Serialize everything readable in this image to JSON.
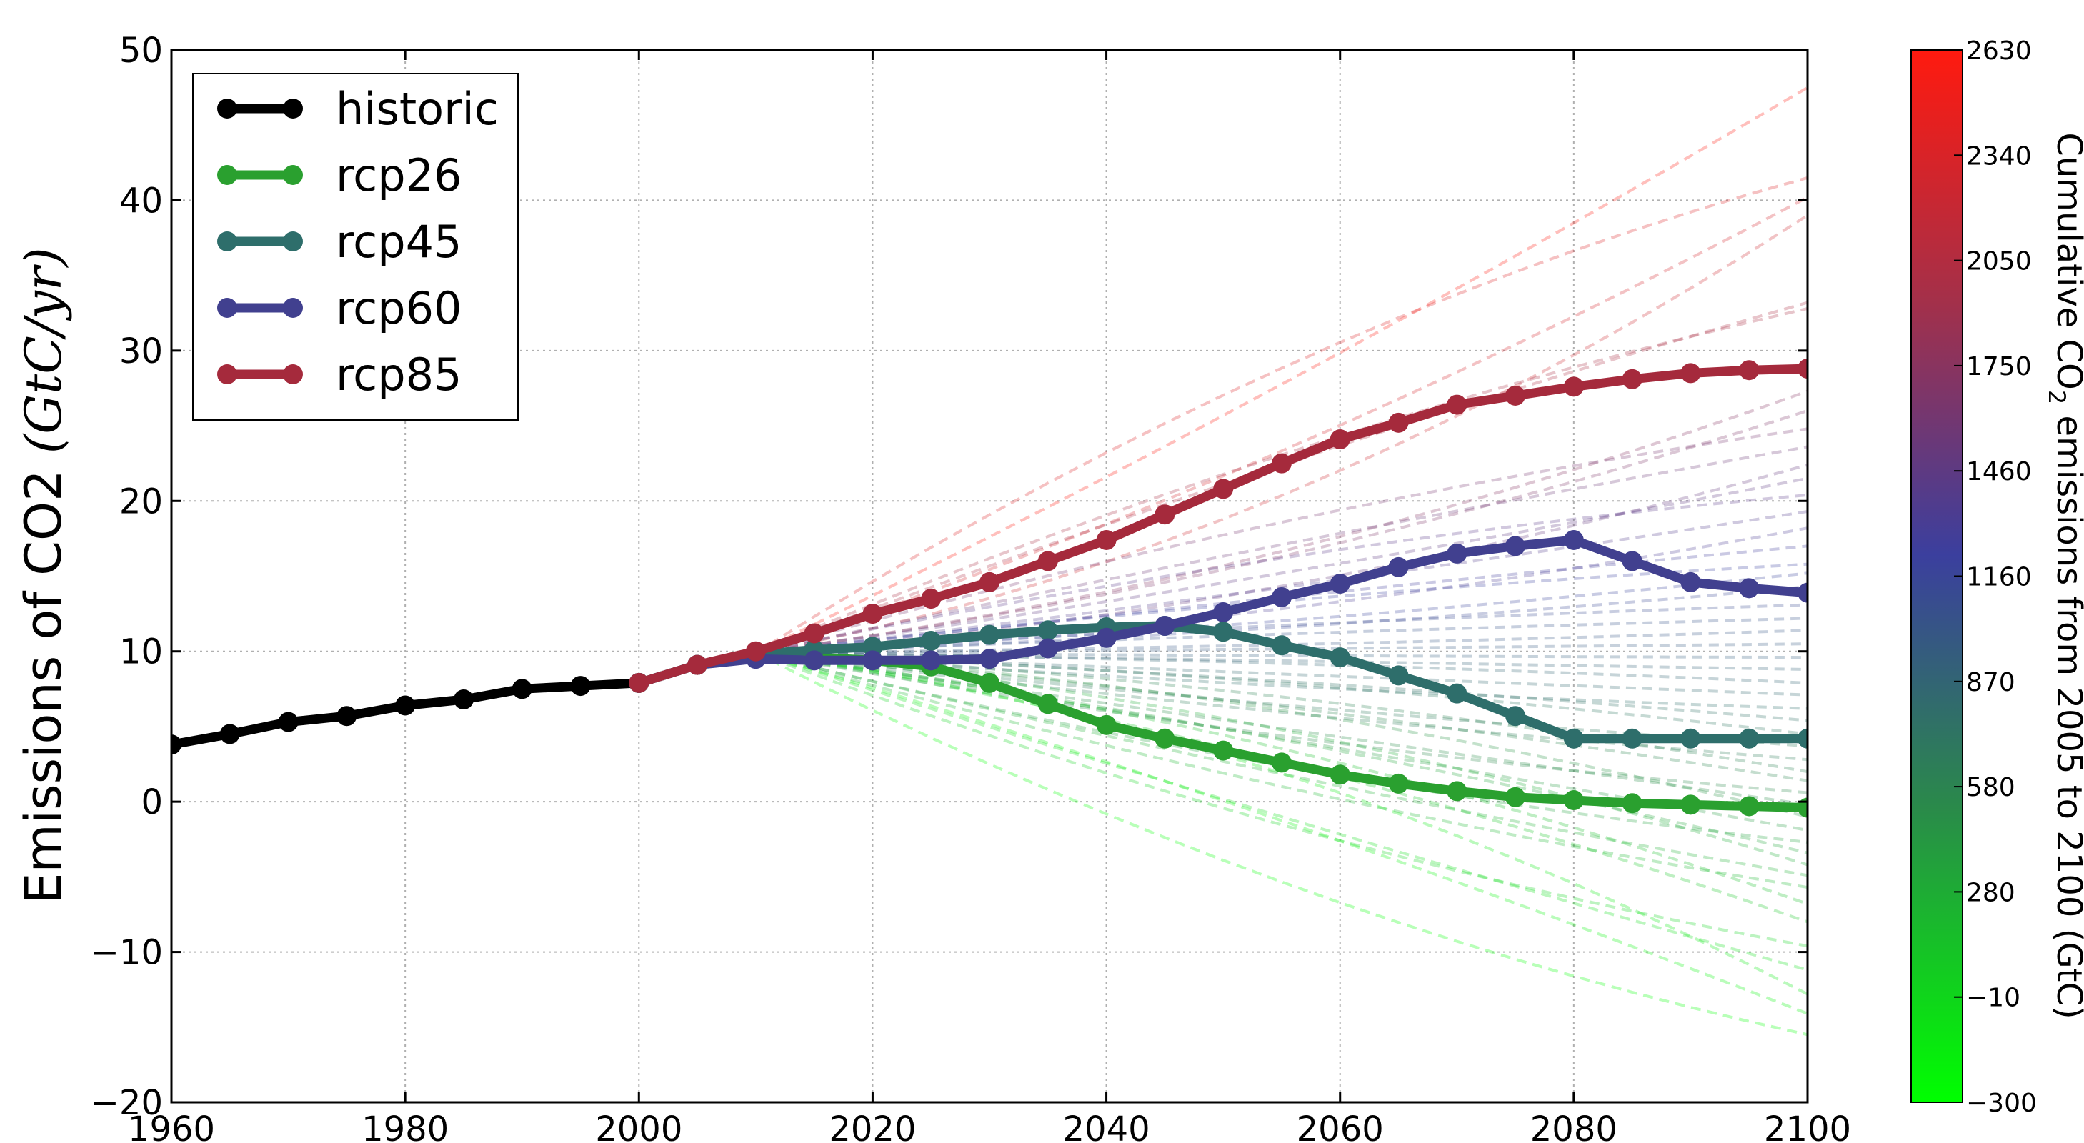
{
  "chart_data": {
    "type": "line",
    "title": "",
    "ylabel": "Emissions of CO2 ",
    "ylabel_unit": "(GtC/yr)",
    "xlabel": "",
    "xlim": [
      1960,
      2100
    ],
    "ylim": [
      -20,
      50
    ],
    "x_ticks": [
      "1960",
      "1980",
      "2000",
      "2020",
      "2040",
      "2060",
      "2080",
      "2100"
    ],
    "y_ticks": [
      "50",
      "40",
      "30",
      "20",
      "10",
      "0",
      "−10",
      "−20"
    ],
    "grid": true,
    "legend_placement": "top-left",
    "series": [
      {
        "name": "historic",
        "color": "#000000",
        "x": [
          1960,
          1965,
          1970,
          1975,
          1980,
          1985,
          1990,
          1995,
          2000
        ],
        "y": [
          3.8,
          4.5,
          5.3,
          5.7,
          6.4,
          6.8,
          7.5,
          7.7,
          7.9
        ]
      },
      {
        "name": "rcp26",
        "color": "#2aa02f",
        "x": [
          2000,
          2005,
          2010,
          2015,
          2020,
          2025,
          2030,
          2035,
          2040,
          2045,
          2050,
          2055,
          2060,
          2065,
          2070,
          2075,
          2080,
          2085,
          2090,
          2095,
          2100
        ],
        "y": [
          7.9,
          9.1,
          9.9,
          9.6,
          9.4,
          9.0,
          7.9,
          6.5,
          5.1,
          4.2,
          3.4,
          2.6,
          1.8,
          1.2,
          0.7,
          0.3,
          0.1,
          -0.1,
          -0.2,
          -0.3,
          -0.4
        ]
      },
      {
        "name": "rcp45",
        "color": "#2e6e6b",
        "x": [
          2000,
          2005,
          2010,
          2015,
          2020,
          2025,
          2030,
          2035,
          2040,
          2045,
          2050,
          2055,
          2060,
          2065,
          2070,
          2075,
          2080,
          2085,
          2090,
          2095,
          2100
        ],
        "y": [
          7.9,
          9.1,
          9.8,
          10.1,
          10.3,
          10.7,
          11.1,
          11.4,
          11.6,
          11.7,
          11.3,
          10.4,
          9.6,
          8.4,
          7.2,
          5.7,
          4.2,
          4.2,
          4.2,
          4.2,
          4.2
        ]
      },
      {
        "name": "rcp60",
        "color": "#41408f",
        "x": [
          2000,
          2005,
          2010,
          2015,
          2020,
          2025,
          2030,
          2035,
          2040,
          2045,
          2050,
          2055,
          2060,
          2065,
          2070,
          2075,
          2080,
          2085,
          2090,
          2095,
          2100
        ],
        "y": [
          7.9,
          9.1,
          9.5,
          9.4,
          9.4,
          9.4,
          9.5,
          10.2,
          10.9,
          11.7,
          12.6,
          13.6,
          14.5,
          15.6,
          16.5,
          17.0,
          17.4,
          16.0,
          14.6,
          14.2,
          13.9
        ]
      },
      {
        "name": "rcp85",
        "color": "#a52a3c",
        "x": [
          2000,
          2005,
          2010,
          2015,
          2020,
          2025,
          2030,
          2035,
          2040,
          2045,
          2050,
          2055,
          2060,
          2065,
          2070,
          2075,
          2080,
          2085,
          2090,
          2095,
          2100
        ],
        "y": [
          7.9,
          9.1,
          10.0,
          11.2,
          12.5,
          13.5,
          14.6,
          16.0,
          17.4,
          19.1,
          20.8,
          22.5,
          24.1,
          25.2,
          26.4,
          27.0,
          27.6,
          28.1,
          28.5,
          28.7,
          28.8
        ]
      }
    ],
    "ensemble_note": "",
    "ensemble_endpoints_2100": [
      47.5,
      41.5,
      40.2,
      39.0,
      33.2,
      32.8,
      27.3,
      26.0,
      24.8,
      23.6,
      22.4,
      21.5,
      20.4,
      19.3,
      18.2,
      17.0,
      15.8,
      15.2,
      14.3,
      13.1,
      12.2,
      11.4,
      10.5,
      9.6,
      8.8,
      7.9,
      7.1,
      6.2,
      5.4,
      4.5,
      3.7,
      2.8,
      2.0,
      1.4,
      0.6,
      -0.2,
      -1.0,
      -1.9,
      -2.7,
      -3.4,
      -4.2,
      -4.9,
      -5.7,
      -6.8,
      -8.0,
      -9.6,
      -11.2,
      -12.8,
      -14.1,
      -15.5
    ],
    "colorbar": {
      "label_prefix": "Cumulative CO",
      "label_sub": "2",
      "label_suffix": " emissions from 2005 to 2100 (GtC)",
      "ticks": [
        "2630",
        "2340",
        "2050",
        "1750",
        "1460",
        "1160",
        "870",
        "580",
        "280",
        "−10",
        "−300"
      ],
      "range": [
        -300,
        2630
      ],
      "colors": [
        "#00ff00",
        "#2a8a4a",
        "#3b3f9e",
        "#a3304a",
        "#ff1a0f"
      ]
    }
  }
}
